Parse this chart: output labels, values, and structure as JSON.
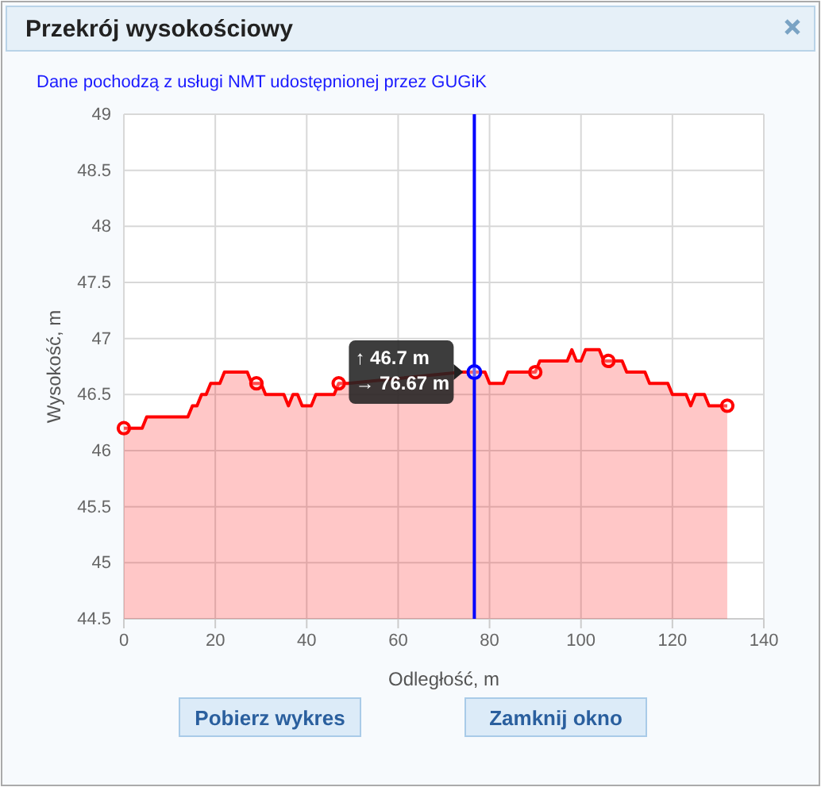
{
  "chart_data": {
    "type": "area",
    "title": "Przekrój wysokościowy",
    "subtitle": "Dane pochodzą z usługi NMT udostępnionej przez GUGiK",
    "xlabel": "Odległość, m",
    "ylabel": "Wysokość, m",
    "xlim": [
      0,
      140
    ],
    "xticks": [
      0,
      20,
      40,
      60,
      80,
      100,
      120,
      140
    ],
    "ylim": [
      44.5,
      49
    ],
    "yticks": [
      44.5,
      45,
      45.5,
      46,
      46.5,
      47,
      47.5,
      48,
      48.5,
      49
    ],
    "grid": true,
    "series": [
      {
        "color": "#ff0000",
        "x": [
          0,
          4,
          5,
          14,
          15,
          16,
          17,
          18,
          19,
          21,
          22,
          27,
          28,
          30,
          31,
          35,
          36,
          37,
          38,
          39,
          41,
          42,
          46,
          47,
          49,
          74,
          79,
          80,
          83,
          84,
          90,
          91,
          97,
          98,
          99,
          100,
          101,
          104,
          105,
          109,
          110,
          114,
          115,
          119,
          120,
          123,
          124,
          125,
          127,
          128,
          132
        ],
        "values": [
          46.2,
          46.2,
          46.3,
          46.3,
          46.4,
          46.4,
          46.5,
          46.5,
          46.6,
          46.6,
          46.7,
          46.7,
          46.6,
          46.6,
          46.5,
          46.5,
          46.4,
          46.5,
          46.5,
          46.4,
          46.4,
          46.5,
          46.5,
          46.6,
          46.6,
          46.7,
          46.7,
          46.6,
          46.6,
          46.7,
          46.7,
          46.8,
          46.8,
          46.9,
          46.8,
          46.8,
          46.9,
          46.9,
          46.8,
          46.8,
          46.7,
          46.7,
          46.6,
          46.6,
          46.5,
          46.5,
          46.4,
          46.5,
          46.5,
          46.4,
          46.4
        ]
      },
      {
        "type": "scatter",
        "color": "#ff0000",
        "marker": "circle",
        "x": [
          0,
          29,
          47,
          90,
          106,
          132
        ],
        "values": [
          46.2,
          46.6,
          46.6,
          46.7,
          46.8,
          46.4
        ]
      }
    ],
    "ref_lines": [
      {
        "axis": "x",
        "value": 76.67,
        "color": "#0000ff"
      }
    ],
    "annotations": [
      {
        "text": "↑ 46.7 m\n→ 76.67 m",
        "x": 76.67,
        "y": 46.7
      },
      "Pobierz wykres",
      "Zamknij okno"
    ]
  }
}
